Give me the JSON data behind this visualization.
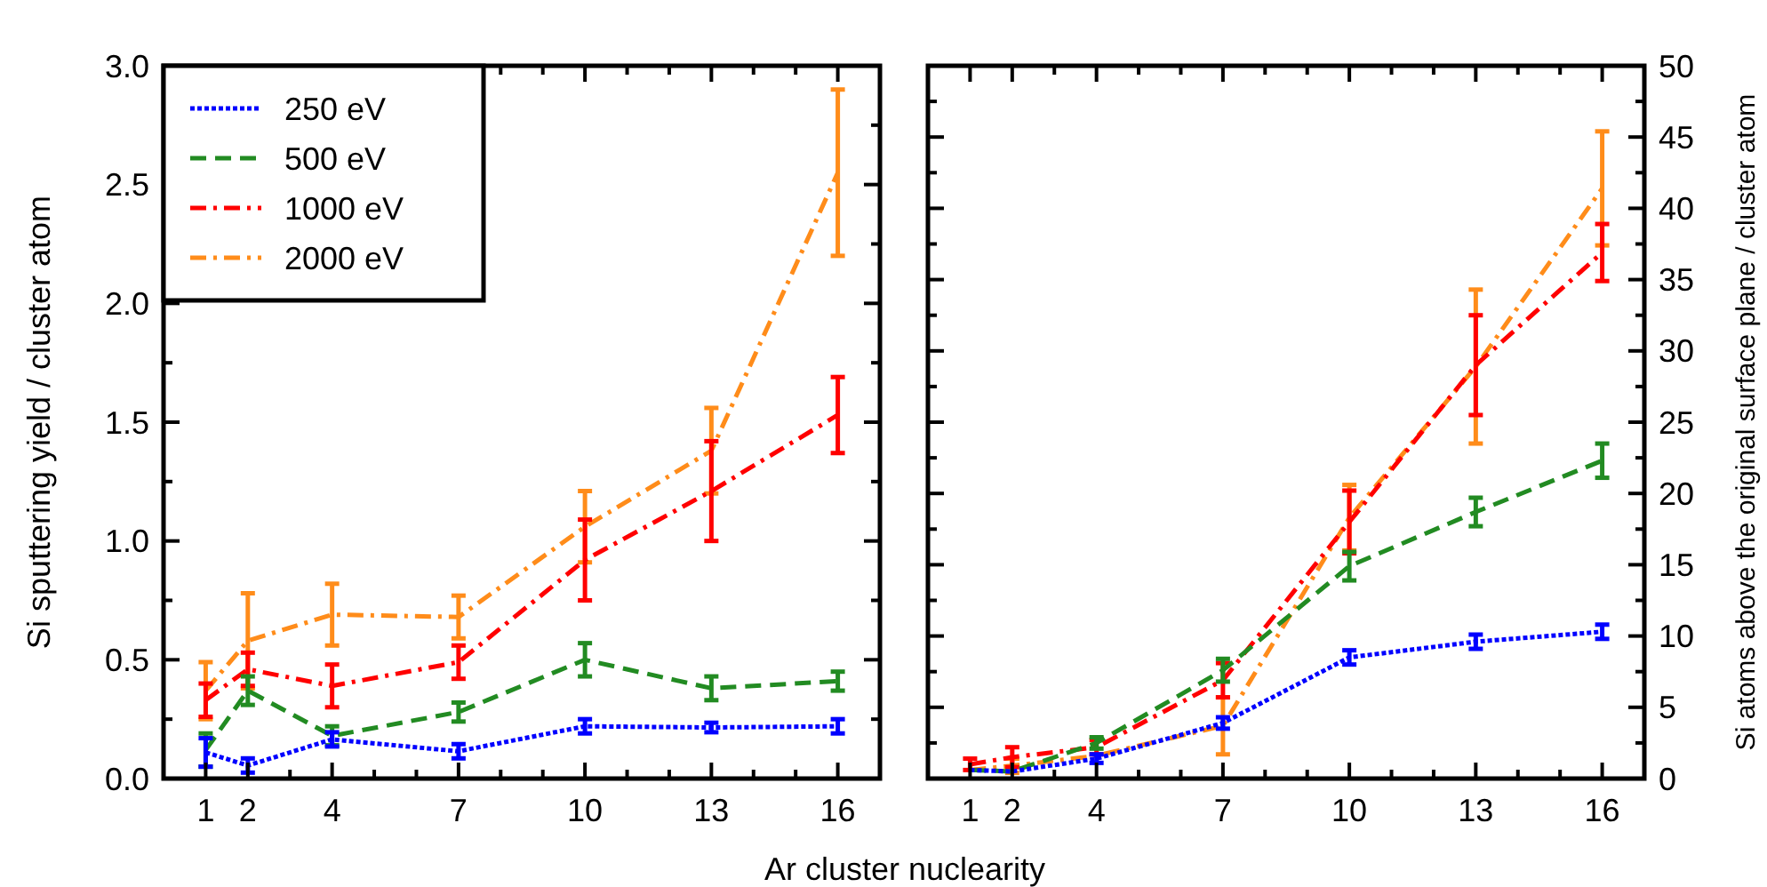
{
  "chart_data": [
    {
      "type": "line",
      "xlabel": "Ar cluster nuclearity",
      "ylabel": "Si sputtering yield / cluster atom",
      "legend": "top left",
      "marker": "none",
      "xlim": [
        0,
        17
      ],
      "xticks": [
        {
          "value": 0,
          "label": null
        },
        1,
        2,
        {
          "value": 3,
          "label": null
        },
        4,
        {
          "value": 5,
          "label": null
        },
        {
          "value": 6,
          "label": null
        },
        7,
        {
          "value": 8,
          "label": null
        },
        {
          "value": 9,
          "label": null
        },
        10,
        {
          "value": 11,
          "label": null
        },
        {
          "value": 12,
          "label": null
        },
        13,
        {
          "value": 14,
          "label": null
        },
        {
          "value": 15,
          "label": null
        },
        16,
        {
          "value": 17,
          "label": null
        }
      ],
      "ylim": [
        0,
        3
      ],
      "yticks": [
        {
          "value": 0,
          "label": "0.0"
        },
        {
          "value": 0.25,
          "label": null
        },
        {
          "value": 0.5,
          "label": "0.5"
        },
        {
          "value": 0.75,
          "label": null
        },
        {
          "value": 1,
          "label": "1.0"
        },
        {
          "value": 1.25,
          "label": null
        },
        {
          "value": 1.5,
          "label": "1.5"
        },
        {
          "value": 1.75,
          "label": null
        },
        {
          "value": 2,
          "label": "2.0"
        },
        {
          "value": 2.25,
          "label": null
        },
        {
          "value": 2.5,
          "label": "2.5"
        },
        {
          "value": 2.75,
          "label": null
        },
        {
          "value": 3,
          "label": "3.0"
        }
      ],
      "x": [
        1,
        2,
        4,
        7,
        10,
        13,
        16
      ],
      "series": [
        {
          "name": "250 eV",
          "color": "#0000ff",
          "line_style": "dotted",
          "values": [
            0.11,
            0.055,
            0.165,
            0.115,
            0.22,
            0.215,
            0.22
          ],
          "errors": [
            0.06,
            0.03,
            0.03,
            0.03,
            0.03,
            0.02,
            0.03
          ]
        },
        {
          "name": "500 eV",
          "color": "#228b22",
          "line_style": "dashed",
          "values": [
            0.12,
            0.37,
            0.18,
            0.28,
            0.5,
            0.38,
            0.41
          ],
          "errors": [
            0.07,
            0.06,
            0.04,
            0.04,
            0.07,
            0.05,
            0.04
          ]
        },
        {
          "name": "1000 eV",
          "color": "#ff0000",
          "line_style": "dashdot",
          "values": [
            0.33,
            0.46,
            0.39,
            0.49,
            0.92,
            1.21,
            1.53
          ],
          "errors": [
            0.07,
            0.07,
            0.09,
            0.07,
            0.17,
            0.21,
            0.16
          ]
        },
        {
          "name": "2000 eV",
          "color": "#ff8c1a",
          "line_style": "dashdot",
          "values": [
            0.37,
            0.58,
            0.69,
            0.68,
            1.06,
            1.38,
            2.55
          ],
          "errors": [
            0.12,
            0.2,
            0.13,
            0.09,
            0.15,
            0.18,
            0.35
          ]
        }
      ]
    },
    {
      "type": "line",
      "y2label": "Si atoms above the original surface plane / cluster atom",
      "marker": "none",
      "xlim": [
        0,
        17
      ],
      "xticks": [
        {
          "value": 0,
          "label": null
        },
        1,
        2,
        {
          "value": 3,
          "label": null
        },
        4,
        {
          "value": 5,
          "label": null
        },
        {
          "value": 6,
          "label": null
        },
        7,
        {
          "value": 8,
          "label": null
        },
        {
          "value": 9,
          "label": null
        },
        10,
        {
          "value": 11,
          "label": null
        },
        {
          "value": 12,
          "label": null
        },
        13,
        {
          "value": 14,
          "label": null
        },
        {
          "value": 15,
          "label": null
        },
        16,
        {
          "value": 17,
          "label": null
        }
      ],
      "y2lim": [
        0,
        50
      ],
      "y2ticks": [
        0,
        {
          "value": 2.5,
          "label": null
        },
        5,
        {
          "value": 7.5,
          "label": null
        },
        10,
        {
          "value": 12.5,
          "label": null
        },
        15,
        {
          "value": 17.5,
          "label": null
        },
        20,
        {
          "value": 22.5,
          "label": null
        },
        25,
        {
          "value": 27.5,
          "label": null
        },
        30,
        {
          "value": 32.5,
          "label": null
        },
        35,
        {
          "value": 37.5,
          "label": null
        },
        40,
        {
          "value": 42.5,
          "label": null
        },
        45,
        {
          "value": 47.5,
          "label": null
        },
        50
      ],
      "x": [
        1,
        2,
        4,
        7,
        10,
        13,
        16
      ],
      "series": [
        {
          "axis": "y2",
          "color": "#0000ff",
          "line_style": "dotted",
          "values": [
            0.6,
            0.5,
            1.4,
            3.9,
            8.5,
            9.6,
            10.3
          ],
          "errors": [
            null,
            null,
            0.3,
            0.4,
            0.5,
            0.5,
            0.5
          ]
        },
        {
          "axis": "y2",
          "color": "#228b22",
          "line_style": "dashed",
          "values": [
            0.6,
            0.5,
            2.5,
            7.6,
            14.9,
            18.7,
            22.3
          ],
          "errors": [
            null,
            null,
            0.4,
            0.8,
            1,
            1,
            1.2
          ]
        },
        {
          "axis": "y2",
          "color": "#ff0000",
          "line_style": "dashdot",
          "values": [
            1,
            1.5,
            2.2,
            6.9,
            18,
            29,
            36.9
          ],
          "errors": [
            0.4,
            0.7,
            0.5,
            1.2,
            2.2,
            3.5,
            2
          ]
        },
        {
          "axis": "y2",
          "color": "#ff8c1a",
          "line_style": "dashdot",
          "values": [
            0.6,
            0.9,
            1.6,
            3.7,
            18.3,
            28.9,
            41.4
          ],
          "errors": [
            null,
            0.5,
            null,
            2,
            2.3,
            5.4,
            4
          ]
        }
      ]
    }
  ]
}
